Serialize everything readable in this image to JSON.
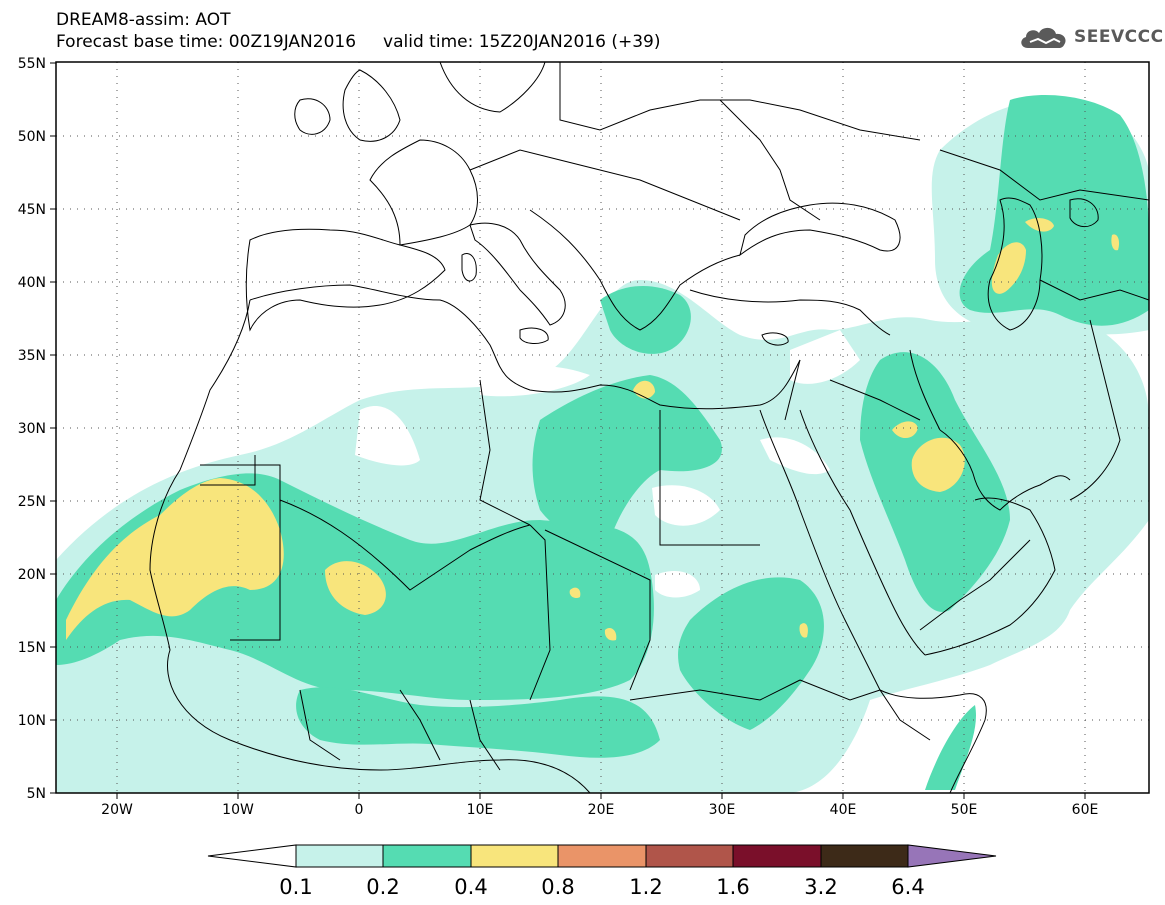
{
  "header": {
    "title_line1": "DREAM8-assim: AOT",
    "title_line2": "Forecast base time: 00Z19JAN2016     valid time: 15Z20JAN2016 (+39)",
    "logo_text": "SEEVCCC"
  },
  "map": {
    "lon_range": [
      -25,
      65
    ],
    "lat_range": [
      5,
      55
    ],
    "lat_labels": [
      "55N",
      "50N",
      "45N",
      "40N",
      "35N",
      "30N",
      "25N",
      "20N",
      "15N",
      "10N",
      "5N"
    ],
    "lon_labels": [
      "20W",
      "10W",
      "0",
      "10E",
      "20E",
      "30E",
      "40E",
      "50E",
      "60E"
    ],
    "land_color": "#ffffff",
    "border_color": "#000000",
    "grid": "dotted"
  },
  "colorbar": {
    "labels": [
      "0.1",
      "0.2",
      "0.4",
      "0.8",
      "1.2",
      "1.6",
      "3.2",
      "6.4"
    ],
    "colors": [
      "#c6f2ea",
      "#55dcb2",
      "#f8e57c",
      "#ea9468",
      "#b0554a",
      "#7a0f2a",
      "#3d2a18"
    ],
    "under_color": "#ffffff",
    "over_color": "#9775b8"
  }
}
